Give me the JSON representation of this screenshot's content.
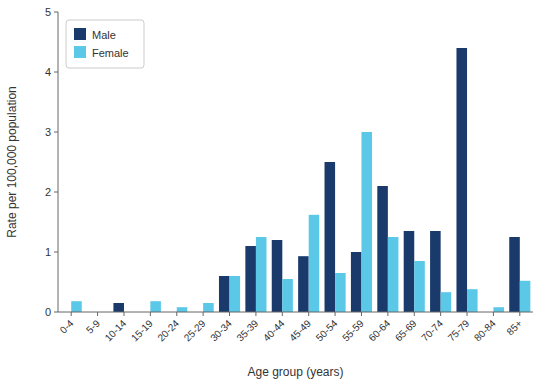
{
  "chart_data": {
    "type": "bar",
    "categories": [
      "0-4",
      "5-9",
      "10-14",
      "15-19",
      "20-24",
      "25-29",
      "30-34",
      "35-39",
      "40-44",
      "45-49",
      "50-54",
      "55-59",
      "60-64",
      "65-69",
      "70-74",
      "75-79",
      "80-84",
      "85+"
    ],
    "series": [
      {
        "name": "Male",
        "color": "#1a3a6b",
        "values": [
          0.0,
          0.0,
          0.15,
          0.0,
          0.0,
          0.0,
          0.6,
          1.1,
          1.2,
          0.93,
          2.5,
          1.0,
          2.1,
          1.35,
          1.35,
          4.4,
          0.0,
          1.25
        ]
      },
      {
        "name": "Female",
        "color": "#5bc8e8",
        "values": [
          0.18,
          0.0,
          0.0,
          0.18,
          0.08,
          0.15,
          0.6,
          1.25,
          0.55,
          1.62,
          0.65,
          3.0,
          1.25,
          0.85,
          0.33,
          0.38,
          0.08,
          0.52
        ]
      }
    ],
    "x_label": "Age group (years)",
    "y_label": "Rate per 100,000 population",
    "ylim": [
      0,
      5
    ],
    "yticks": [
      0,
      1,
      2,
      3,
      4,
      5
    ],
    "legend": "upper left",
    "grid": false
  }
}
